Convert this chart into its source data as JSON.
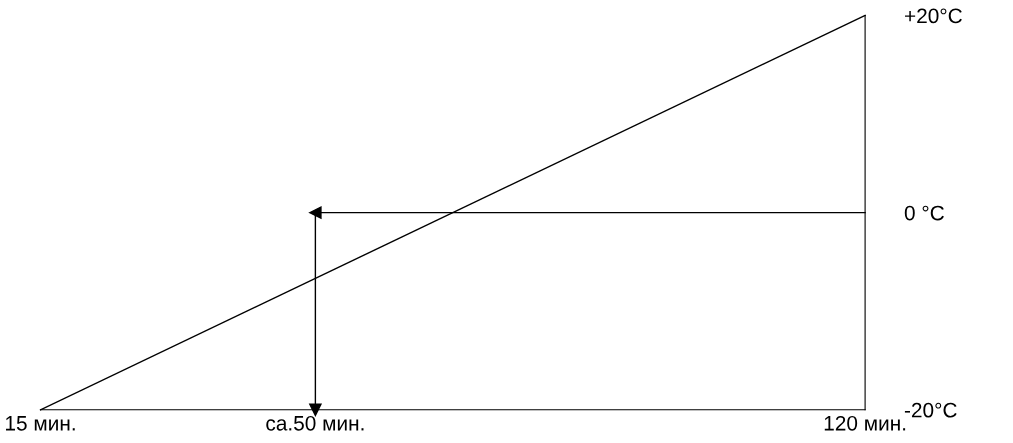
{
  "chart_data": {
    "type": "line",
    "x": [
      15,
      120
    ],
    "values": [
      -20,
      20
    ],
    "color": "#000000",
    "xlim": [
      15,
      120
    ],
    "ylim": [
      -20,
      20
    ],
    "xticks": [
      {
        "value": 15,
        "label": "15 мин."
      },
      {
        "value": 50,
        "label": "ca.50 мин."
      },
      {
        "value": 120,
        "label": "120 мин."
      }
    ],
    "yticks": [
      {
        "value": -20,
        "label": "-20°C"
      },
      {
        "value": 0,
        "label": "0 °C"
      },
      {
        "value": 20,
        "label": "+20°C"
      }
    ],
    "ref_lines": [
      {
        "axis": "y",
        "value": 0,
        "label": null,
        "color": "#000000"
      },
      {
        "axis": "x",
        "value": 50,
        "label": null,
        "color": "#000000"
      }
    ],
    "grid": false,
    "legend": false,
    "marker": "none",
    "line_style": "solid"
  }
}
